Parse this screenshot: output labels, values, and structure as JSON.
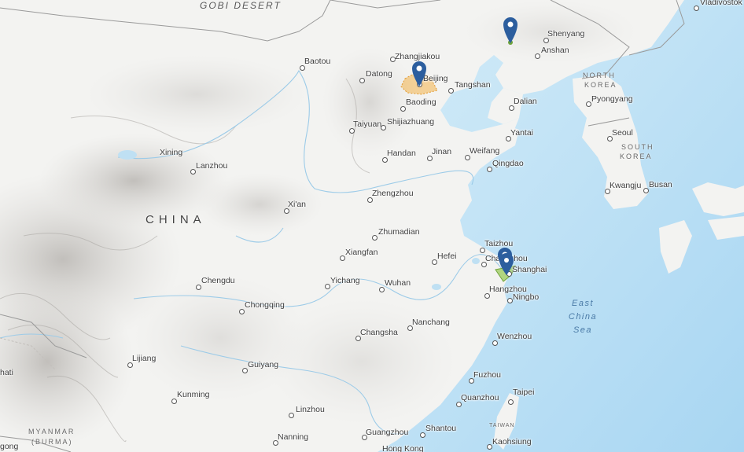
{
  "map": {
    "regions": {
      "gobi": "GOBI DESERT",
      "china": "CHINA",
      "north_korea_1": "NORTH",
      "north_korea_2": "KOREA",
      "south_korea_1": "SOUTH",
      "south_korea_2": "KOREA",
      "myanmar_1": "MYANMAR",
      "myanmar_2": "(BURMA)",
      "taiwan": "TAIWAN"
    },
    "sea": {
      "line1": "East",
      "line2": "China",
      "line3": "Sea"
    },
    "cities": [
      {
        "id": "vladivostok",
        "name": "Vladivostok"
      },
      {
        "id": "shenyang",
        "name": "Shenyang"
      },
      {
        "id": "anshan",
        "name": "Anshan"
      },
      {
        "id": "baotou",
        "name": "Baotou"
      },
      {
        "id": "zhangjiakou",
        "name": "Zhangjiakou"
      },
      {
        "id": "datong",
        "name": "Datong"
      },
      {
        "id": "beijing",
        "name": "Beijing"
      },
      {
        "id": "tangshan",
        "name": "Tangshan"
      },
      {
        "id": "baoding",
        "name": "Baoding"
      },
      {
        "id": "dalian",
        "name": "Dalian"
      },
      {
        "id": "pyongyang",
        "name": "Pyongyang"
      },
      {
        "id": "taiyuan",
        "name": "Taiyuan"
      },
      {
        "id": "shijiazhuang",
        "name": "Shijiazhuang"
      },
      {
        "id": "yantai",
        "name": "Yantai"
      },
      {
        "id": "seoul",
        "name": "Seoul"
      },
      {
        "id": "xining",
        "name": "Xining"
      },
      {
        "id": "lanzhou",
        "name": "Lanzhou"
      },
      {
        "id": "handan",
        "name": "Handan"
      },
      {
        "id": "jinan",
        "name": "Jinan"
      },
      {
        "id": "weifang",
        "name": "Weifang"
      },
      {
        "id": "qingdao",
        "name": "Qingdao"
      },
      {
        "id": "kwangju",
        "name": "Kwangju"
      },
      {
        "id": "busan",
        "name": "Busan"
      },
      {
        "id": "zhengzhou",
        "name": "Zhengzhou"
      },
      {
        "id": "xian",
        "name": "Xi'an"
      },
      {
        "id": "zhumadian",
        "name": "Zhumadian"
      },
      {
        "id": "taizhou",
        "name": "Taizhou"
      },
      {
        "id": "xiangfan",
        "name": "Xiangfan"
      },
      {
        "id": "hefei",
        "name": "Hefei"
      },
      {
        "id": "changzhou",
        "name": "Changzhou"
      },
      {
        "id": "shanghai",
        "name": "Shanghai"
      },
      {
        "id": "chengdu",
        "name": "Chengdu"
      },
      {
        "id": "yichang",
        "name": "Yichang"
      },
      {
        "id": "wuhan",
        "name": "Wuhan"
      },
      {
        "id": "hangzhou",
        "name": "Hangzhou"
      },
      {
        "id": "ningbo",
        "name": "Ningbo"
      },
      {
        "id": "chongqing",
        "name": "Chongqing"
      },
      {
        "id": "nanchang",
        "name": "Nanchang"
      },
      {
        "id": "changsha",
        "name": "Changsha"
      },
      {
        "id": "wenzhou",
        "name": "Wenzhou"
      },
      {
        "id": "lijiang",
        "name": "Lijiang"
      },
      {
        "id": "guiyang",
        "name": "Guiyang"
      },
      {
        "id": "fuzhou",
        "name": "Fuzhou"
      },
      {
        "id": "kunming",
        "name": "Kunming"
      },
      {
        "id": "quanzhou",
        "name": "Quanzhou"
      },
      {
        "id": "taipei",
        "name": "Taipei"
      },
      {
        "id": "linzhou",
        "name": "Linzhou"
      },
      {
        "id": "shantou",
        "name": "Shantou"
      },
      {
        "id": "guangzhou",
        "name": "Guangzhou"
      },
      {
        "id": "nanning",
        "name": "Nanning"
      },
      {
        "id": "kaohsiung",
        "name": "Kaohsiung"
      },
      {
        "id": "hong_kong",
        "name": "Hong Kong"
      },
      {
        "id": "edge_left_1",
        "name": "hati"
      },
      {
        "id": "edge_left_2",
        "name": "gong"
      }
    ],
    "markers": [
      {
        "id": "pin-northeast",
        "icon": "map-marker-icon",
        "color": "#2c5e9e"
      },
      {
        "id": "pin-beijing",
        "icon": "map-marker-icon",
        "color": "#2c5e9e"
      },
      {
        "id": "pin-shanghai-1",
        "icon": "map-marker-icon",
        "color": "#2c5e9e"
      },
      {
        "id": "pin-shanghai-2",
        "icon": "map-marker-icon",
        "color": "#2c5e9e"
      }
    ],
    "areas": [
      {
        "id": "beijing-area",
        "color": "#f2b24a"
      },
      {
        "id": "shanghai-area",
        "color": "#9bcb5a"
      }
    ],
    "colors": {
      "land": "#f2f2f0",
      "water": "#bfe0f3",
      "deep_water": "#9fd0ef",
      "border": "#9a9a9a"
    }
  }
}
